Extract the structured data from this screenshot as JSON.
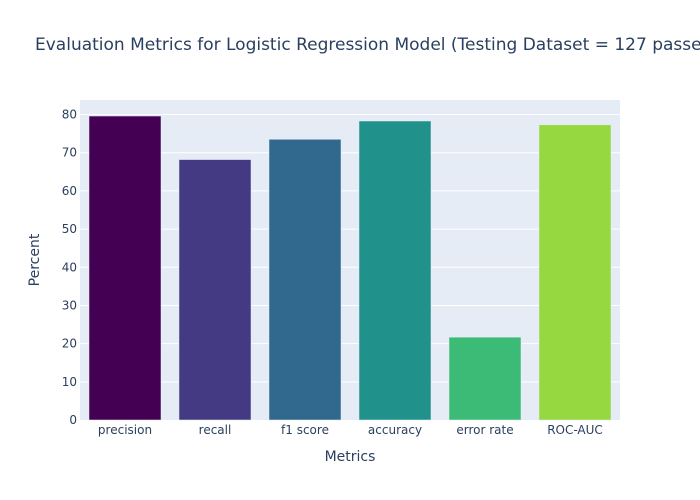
{
  "chart_data": {
    "type": "bar",
    "title": "Evaluation Metrics for Logistic Regression Model (Testing Dataset = 127 passe",
    "xlabel": "Metrics",
    "ylabel": "Percent",
    "categories": [
      "precision",
      "recall",
      "f1 score",
      "accuracy",
      "error rate",
      "ROC-AUC"
    ],
    "values": [
      79.6,
      68.2,
      73.5,
      78.3,
      21.7,
      77.3
    ],
    "colors": [
      "#440154",
      "#443983",
      "#31688e",
      "#21918c",
      "#3bbb75",
      "#95d840"
    ],
    "ylim": [
      0,
      83.8
    ],
    "yticks": [
      0,
      10,
      20,
      30,
      40,
      50,
      60,
      70,
      80
    ],
    "grid": true,
    "plot_bg": "#e5ecf6",
    "text_color": "#2a3f5f"
  }
}
